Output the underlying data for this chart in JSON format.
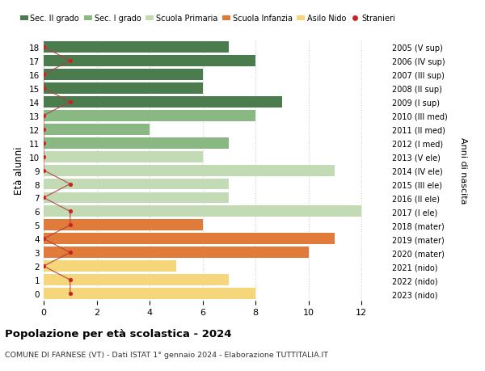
{
  "ages": [
    18,
    17,
    16,
    15,
    14,
    13,
    12,
    11,
    10,
    9,
    8,
    7,
    6,
    5,
    4,
    3,
    2,
    1,
    0
  ],
  "right_labels": [
    "2005 (V sup)",
    "2006 (IV sup)",
    "2007 (III sup)",
    "2008 (II sup)",
    "2009 (I sup)",
    "2010 (III med)",
    "2011 (II med)",
    "2012 (I med)",
    "2013 (V ele)",
    "2014 (IV ele)",
    "2015 (III ele)",
    "2016 (II ele)",
    "2017 (I ele)",
    "2018 (mater)",
    "2019 (mater)",
    "2020 (mater)",
    "2021 (nido)",
    "2022 (nido)",
    "2023 (nido)"
  ],
  "bar_values": [
    7,
    8,
    6,
    6,
    9,
    8,
    4,
    7,
    6,
    11,
    7,
    7,
    12,
    6,
    11,
    10,
    5,
    7,
    8
  ],
  "bar_colors": [
    "#4a7c4e",
    "#4a7c4e",
    "#4a7c4e",
    "#4a7c4e",
    "#4a7c4e",
    "#8ab882",
    "#8ab882",
    "#8ab882",
    "#c2dbb5",
    "#c2dbb5",
    "#c2dbb5",
    "#c2dbb5",
    "#c2dbb5",
    "#e07b39",
    "#e07b39",
    "#e07b39",
    "#f5d67a",
    "#f5d67a",
    "#f5d67a"
  ],
  "stranieri_x": [
    0,
    1,
    0,
    0,
    1,
    0,
    0,
    0,
    0,
    0,
    1,
    0,
    1,
    1,
    0,
    1,
    0,
    1,
    1
  ],
  "title_bold": "Popolazione per età scolastica - 2024",
  "subtitle": "COMUNE DI FARNESE (VT) - Dati ISTAT 1° gennaio 2024 - Elaborazione TUTTITALIA.IT",
  "ylabel": "Età alunni",
  "right_ylabel": "Anni di nascita",
  "xlim_max": 13,
  "xticks": [
    0,
    2,
    4,
    6,
    8,
    10,
    12
  ],
  "legend_labels": [
    "Sec. II grado",
    "Sec. I grado",
    "Scuola Primaria",
    "Scuola Infanzia",
    "Asilo Nido",
    "Stranieri"
  ],
  "legend_colors": [
    "#4a7c4e",
    "#8ab882",
    "#c2dbb5",
    "#e07b39",
    "#f5d67a",
    "#cc2222"
  ],
  "grid_color": "#cccccc",
  "bg_color": "#ffffff",
  "stranieri_color": "#cc2222",
  "stranieri_line_color": "#b04040"
}
